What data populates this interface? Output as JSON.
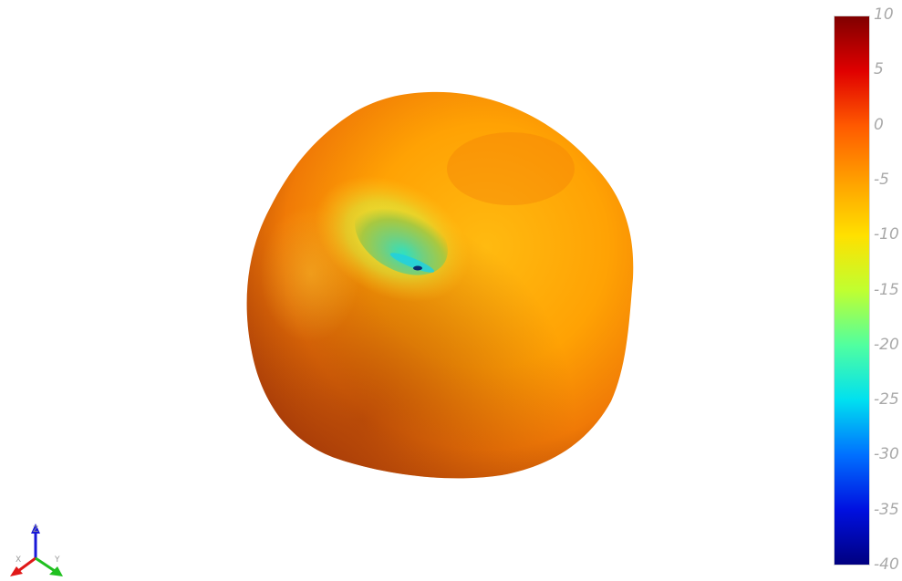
{
  "colorbar": {
    "min": -40,
    "max": 10,
    "ticks": [
      "10",
      "5",
      "0",
      "-5",
      "-10",
      "-15",
      "-20",
      "-25",
      "-30",
      "-35",
      "-40"
    ],
    "colormap": [
      "#800000",
      "#e00000",
      "#ff5a00",
      "#ffa000",
      "#ffe000",
      "#c0ff30",
      "#50ffa0",
      "#00e0f0",
      "#0070ff",
      "#0010e0",
      "#000080"
    ]
  },
  "axes_triad": {
    "x_label": "X",
    "y_label": "Y",
    "z_label": "Z",
    "x_color": "#e01818",
    "y_color": "#20c020",
    "z_color": "#1818d8"
  }
}
